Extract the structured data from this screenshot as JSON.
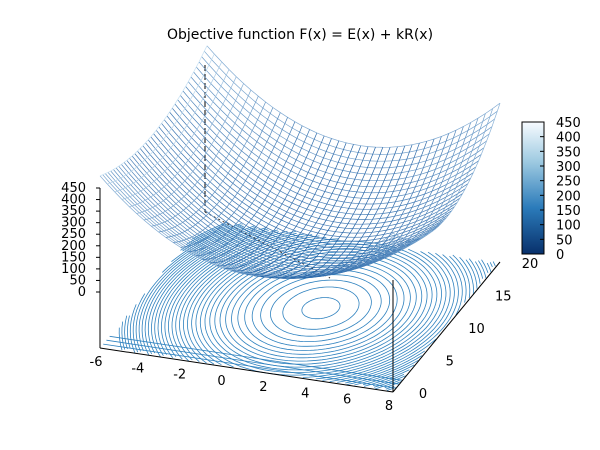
{
  "chart_data": {
    "type": "surface3d",
    "title": "Objective function F(x) = E(x) + kR(x)",
    "xlabel": "",
    "ylabel": "",
    "zlabel": "",
    "x_ticks": [
      "-6",
      "-4",
      "-2",
      "0",
      "2",
      "4",
      "6",
      "8"
    ],
    "y_ticks": [
      "0",
      "5",
      "10",
      "15",
      "20"
    ],
    "z_ticks": [
      "0",
      "50",
      "100",
      "150",
      "200",
      "250",
      "300",
      "350",
      "400",
      "450"
    ],
    "colorbar_ticks": [
      "0",
      "50",
      "100",
      "150",
      "200",
      "250",
      "300",
      "350",
      "400",
      "450"
    ],
    "xlim": [
      -6,
      8
    ],
    "ylim": [
      0,
      20
    ],
    "zlim": [
      0,
      450
    ],
    "minimum": {
      "x": 2,
      "y": 10,
      "z": 0
    },
    "surface_samples": [
      {
        "x": -6,
        "y": 0,
        "z": 250
      },
      {
        "x": 8,
        "y": 20,
        "z": 400
      },
      {
        "x": 2,
        "y": 10,
        "z": 0
      }
    ],
    "contour_projection": true,
    "grid": false,
    "colorbar": "right",
    "colors": {
      "mesh_low": "#0a4f9a",
      "mesh_high": "#d6ecfa",
      "contour": "#2f82bf"
    }
  }
}
